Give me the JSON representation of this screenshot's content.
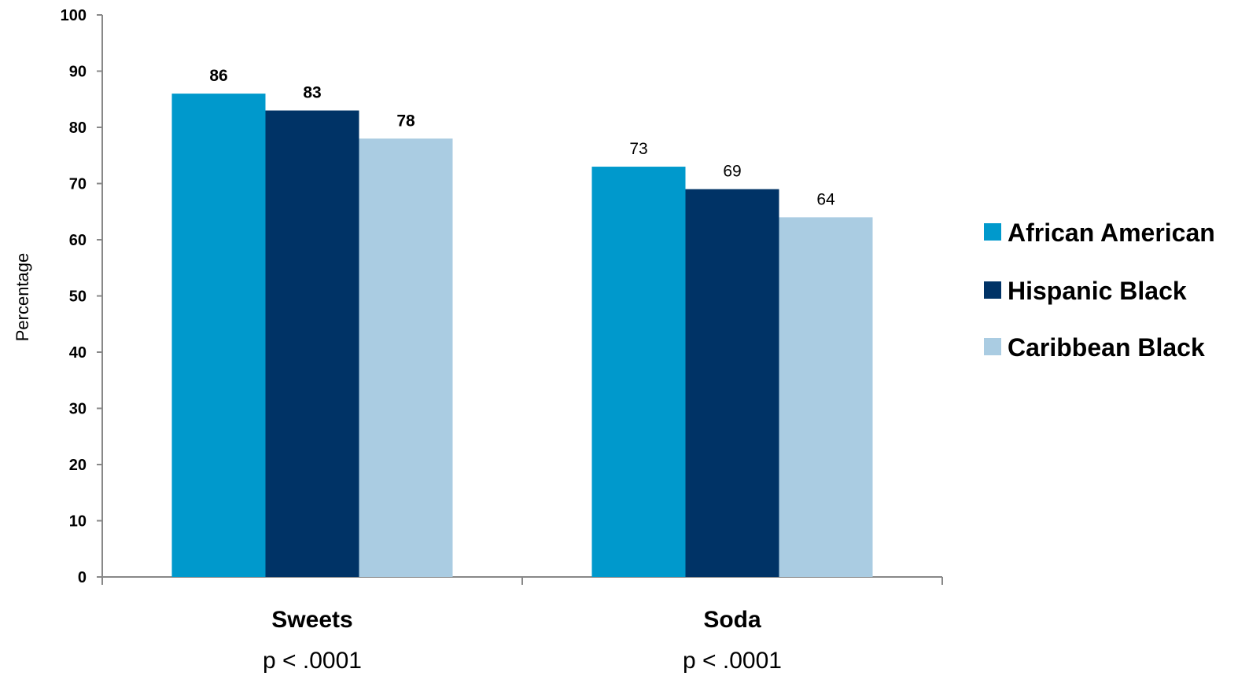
{
  "chart_data": {
    "type": "bar",
    "categories": [
      "Sweets",
      "Soda"
    ],
    "category_notes": [
      "p < .0001",
      "p < .0001"
    ],
    "series": [
      {
        "name": "African American",
        "values": [
          86,
          73
        ],
        "color": "#0099CC"
      },
      {
        "name": "Hispanic Black",
        "values": [
          83,
          69
        ],
        "color": "#003366"
      },
      {
        "name": "Caribbean Black",
        "values": [
          78,
          64
        ],
        "color": "#AACCE2"
      }
    ],
    "ylabel": "Percentage",
    "xlabel": "",
    "ylim": [
      0,
      100
    ],
    "yticks": [
      0,
      10,
      20,
      30,
      40,
      50,
      60,
      70,
      80,
      90,
      100
    ],
    "grid": false,
    "legend_position": "right"
  }
}
